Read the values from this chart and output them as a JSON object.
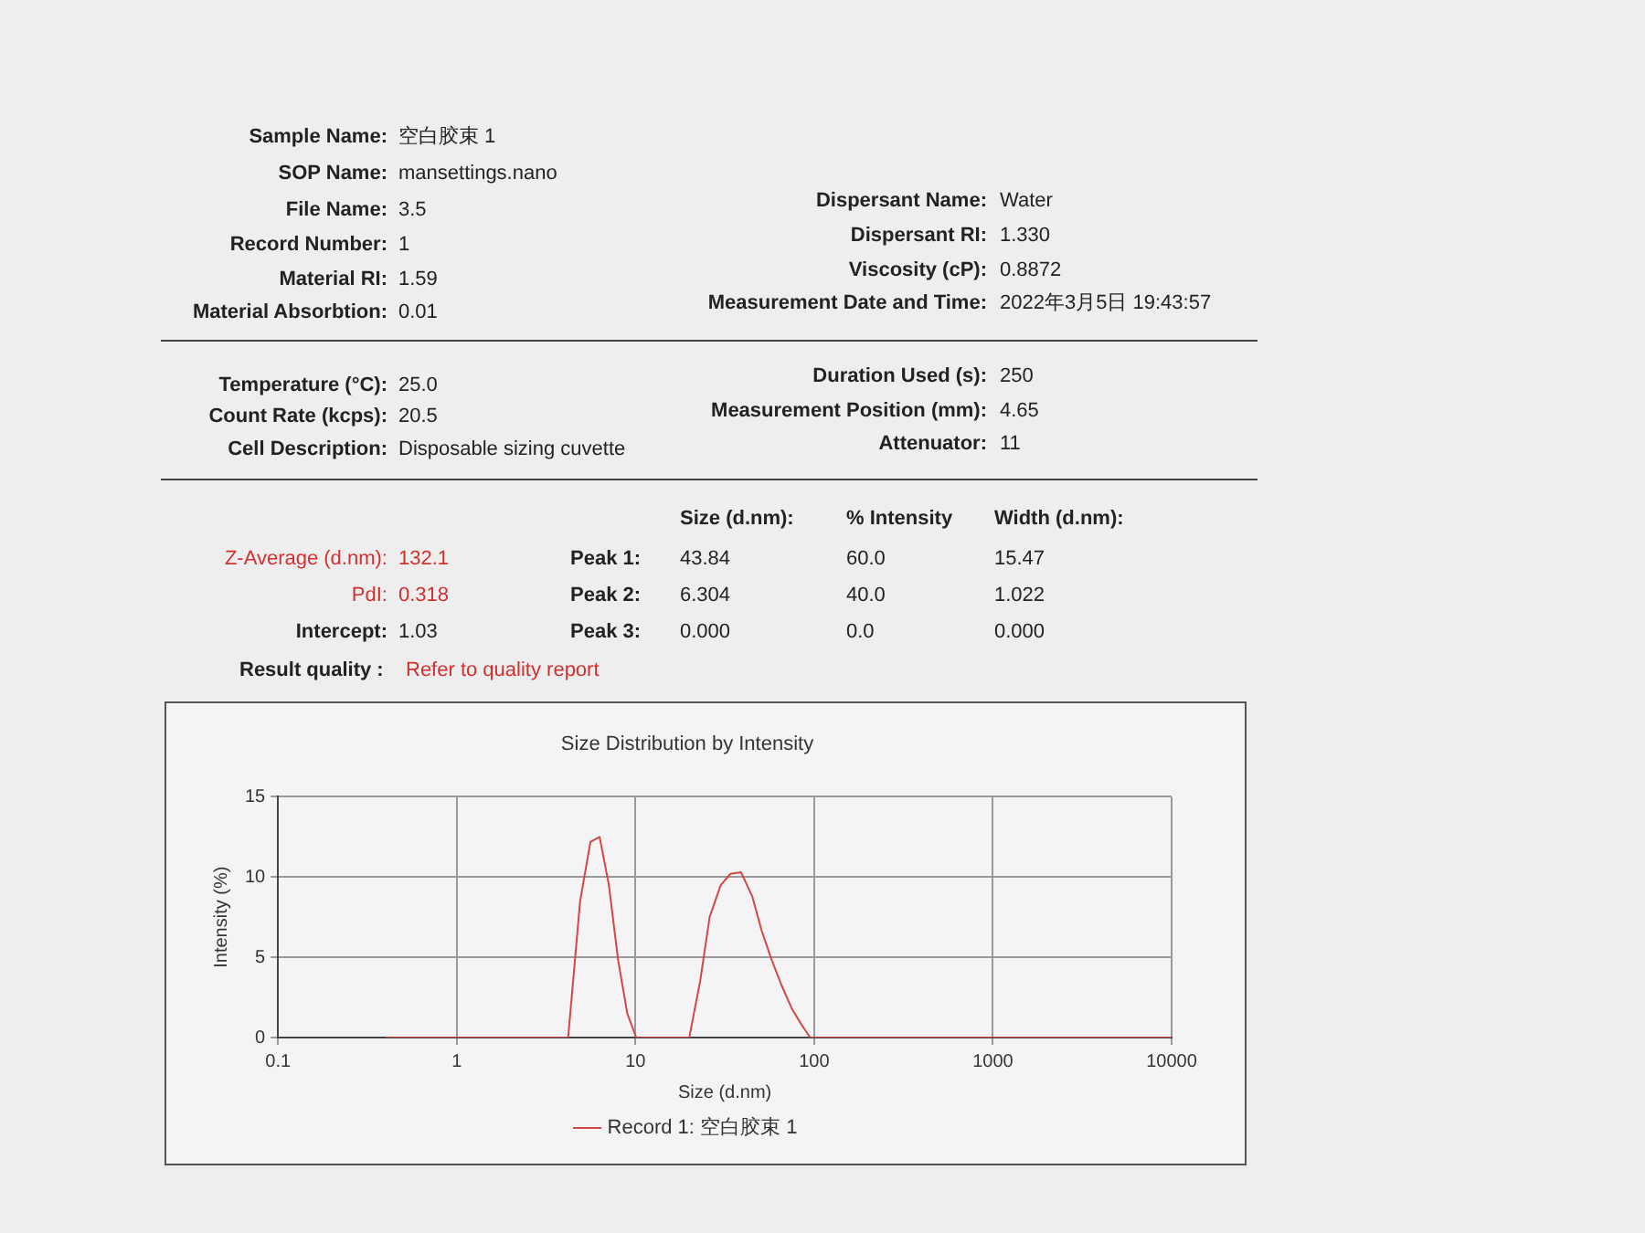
{
  "chart_data": {
    "type": "line",
    "title": "Size Distribution by Intensity",
    "xlabel": "Size (d.nm)",
    "ylabel": "Intensity (%)",
    "x": [
      0.4,
      4.2,
      4.9,
      5.6,
      6.3,
      7.1,
      8.0,
      9.0,
      10.1,
      20,
      23,
      26,
      30,
      34,
      39,
      45,
      51,
      58,
      66,
      75,
      85,
      95,
      10000
    ],
    "series": [
      {
        "name": "Record 1: 空白胶束 1",
        "color": "#d04848",
        "values": [
          0,
          0,
          8.5,
          12.2,
          12.5,
          9.5,
          4.8,
          1.5,
          0,
          0,
          3.5,
          7.5,
          9.5,
          10.2,
          10.3,
          8.8,
          6.6,
          4.8,
          3.2,
          1.8,
          0.8,
          0,
          0
        ]
      }
    ],
    "log": "x",
    "xlim": [
      0.1,
      10000
    ],
    "xticks": [
      0.1,
      1,
      10,
      100,
      1000,
      10000
    ],
    "ylim": [
      0,
      15
    ],
    "yticks": [
      0,
      5,
      10,
      15
    ],
    "grid": true,
    "legend": "bottom",
    "marker": "none",
    "line_style": "solid",
    "annotations": [
      "Sample Name:",
      "空白胶束 1",
      "SOP Name:",
      "mansettings.nano",
      "File Name:",
      "3.5",
      "Record Number:",
      "1",
      "Material RI:",
      "1.59",
      "Material Absorbtion:",
      "0.01",
      "Dispersant Name:",
      "Water",
      "Dispersant RI:",
      "1.330",
      "Viscosity (cP):",
      "0.8872",
      "Measurement Date and Time:",
      "2022年3月5日 19:43:57",
      "Temperature (°C):",
      "25.0",
      "Count Rate (kcps):",
      "20.5",
      "Cell Description:",
      "Disposable sizing cuvette",
      "Duration Used (s):",
      "250",
      "Measurement Position (mm):",
      "4.65",
      "Attenuator:",
      "11",
      "Size (d.nm):",
      "% Intensity",
      "Width (d.nm):",
      "Z-Average (d.nm):",
      "132.1",
      "Peak 1:",
      "43.84",
      "60.0",
      "15.47",
      "PdI:",
      "0.318",
      "Peak 2:",
      "6.304",
      "40.0",
      "1.022",
      "Intercept:",
      "1.03",
      "Peak 3:",
      "0.000",
      "0.0",
      "0.000",
      "Result quality :",
      "Refer to quality report"
    ]
  }
}
